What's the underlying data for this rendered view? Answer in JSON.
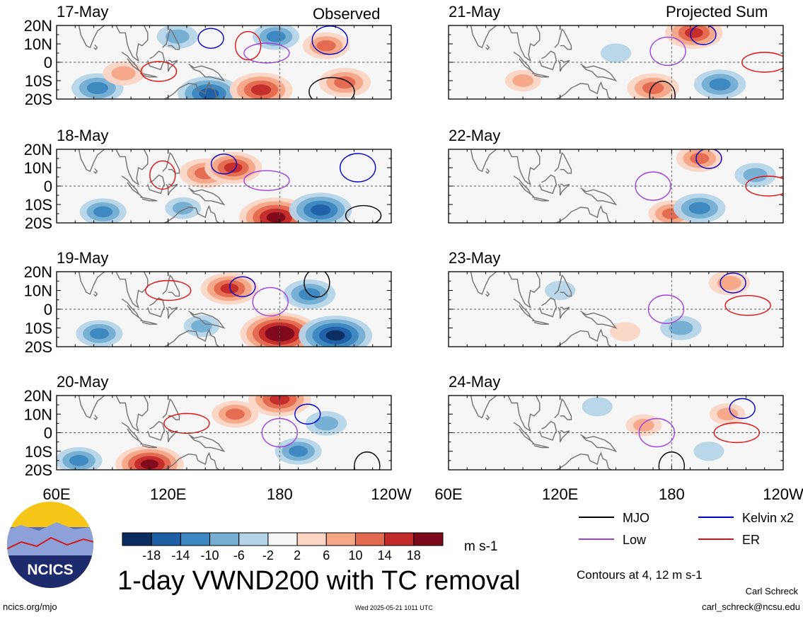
{
  "panel_labels": {
    "observed": "Observed",
    "projected": "Projected Sum"
  },
  "colorbar": {
    "ticks": [
      "-18",
      "-14",
      "-10",
      "-6",
      "-2",
      "2",
      "6",
      "10",
      "14",
      "18"
    ],
    "colors": [
      "#0b2c5e",
      "#1f5fa6",
      "#3d86bf",
      "#74aed3",
      "#b6d4e8",
      "#f6f6f6",
      "#fbd5c4",
      "#f4a687",
      "#e2684f",
      "#c22b2b",
      "#7d0a1c"
    ],
    "units": "m s-1"
  },
  "legend": {
    "items": [
      {
        "label": "MJO",
        "color": "#000000"
      },
      {
        "label": "Kelvin x2",
        "color": "#0000cc"
      },
      {
        "label": "Low",
        "color": "#a040e0"
      },
      {
        "label": "ER",
        "color": "#e01010"
      }
    ]
  },
  "title": "1-day VWND200 with TC removal",
  "contour_note": "Contours at 4, 12 m s-1",
  "author": "Carl Schreck",
  "email": "carl_schreck@ncsu.edu",
  "url": "ncics.org/mjo",
  "timestamp": "Wed 2025-05-21 1011 UTC",
  "logo_text": "NCICS",
  "chart_data": {
    "type": "heatmap",
    "variable": "VWND200",
    "units": "m s-1",
    "x_ticks": [
      "60E",
      "120E",
      "180",
      "120W"
    ],
    "y_ticks": [
      "20N",
      "10N",
      "0",
      "10S",
      "20S"
    ],
    "xlim": [
      60,
      240
    ],
    "ylim": [
      -20,
      20
    ],
    "grid": true,
    "panels": [
      {
        "date": "17-May",
        "column": "Observed",
        "anomalies": [
          {
            "lon": 82,
            "lat": -14,
            "value": -12
          },
          {
            "lon": 96,
            "lat": -6,
            "value": 8
          },
          {
            "lon": 142,
            "lat": -17,
            "value": -16
          },
          {
            "lon": 170,
            "lat": -15,
            "value": 16
          },
          {
            "lon": 125,
            "lat": 14,
            "value": -8
          },
          {
            "lon": 215,
            "lat": -11,
            "value": 12
          },
          {
            "lon": 178,
            "lat": 14,
            "value": -10
          },
          {
            "lon": 205,
            "lat": 9,
            "value": 10
          }
        ]
      },
      {
        "date": "18-May",
        "column": "Observed",
        "anomalies": [
          {
            "lon": 85,
            "lat": -14,
            "value": -10
          },
          {
            "lon": 140,
            "lat": 7,
            "value": 12
          },
          {
            "lon": 178,
            "lat": -17,
            "value": 20
          },
          {
            "lon": 202,
            "lat": -13,
            "value": -16
          },
          {
            "lon": 155,
            "lat": 10,
            "value": 14
          },
          {
            "lon": 128,
            "lat": -12,
            "value": -6
          }
        ]
      },
      {
        "date": "19-May",
        "column": "Observed",
        "anomalies": [
          {
            "lon": 83,
            "lat": -13,
            "value": -10
          },
          {
            "lon": 153,
            "lat": 11,
            "value": 14
          },
          {
            "lon": 180,
            "lat": -13,
            "value": 22
          },
          {
            "lon": 210,
            "lat": -14,
            "value": -20
          },
          {
            "lon": 196,
            "lat": 8,
            "value": -12
          },
          {
            "lon": 138,
            "lat": -9,
            "value": -6
          }
        ]
      },
      {
        "date": "20-May",
        "column": "Observed",
        "anomalies": [
          {
            "lon": 110,
            "lat": -17,
            "value": 18
          },
          {
            "lon": 180,
            "lat": 18,
            "value": 16
          },
          {
            "lon": 156,
            "lat": 10,
            "value": 10
          },
          {
            "lon": 190,
            "lat": -10,
            "value": -10
          },
          {
            "lon": 72,
            "lat": -15,
            "value": -10
          },
          {
            "lon": 205,
            "lat": 5,
            "value": -8
          }
        ]
      },
      {
        "date": "21-May",
        "column": "Projected Sum",
        "anomalies": [
          {
            "lon": 192,
            "lat": 16,
            "value": 14
          },
          {
            "lon": 170,
            "lat": -14,
            "value": 12
          },
          {
            "lon": 206,
            "lat": -12,
            "value": -12
          },
          {
            "lon": 100,
            "lat": -10,
            "value": 6
          },
          {
            "lon": 150,
            "lat": 5,
            "value": -4
          }
        ]
      },
      {
        "date": "22-May",
        "column": "Projected Sum",
        "anomalies": [
          {
            "lon": 195,
            "lat": 15,
            "value": 10
          },
          {
            "lon": 180,
            "lat": -15,
            "value": 10
          },
          {
            "lon": 195,
            "lat": -12,
            "value": -12
          },
          {
            "lon": 225,
            "lat": 6,
            "value": -8
          }
        ]
      },
      {
        "date": "23-May",
        "column": "Projected Sum",
        "anomalies": [
          {
            "lon": 211,
            "lat": 14,
            "value": 8
          },
          {
            "lon": 185,
            "lat": -10,
            "value": -8
          },
          {
            "lon": 155,
            "lat": -12,
            "value": 4
          },
          {
            "lon": 120,
            "lat": 10,
            "value": -4
          }
        ]
      },
      {
        "date": "24-May",
        "column": "Projected Sum",
        "anomalies": [
          {
            "lon": 210,
            "lat": 10,
            "value": 6
          },
          {
            "lon": 165,
            "lat": 4,
            "value": 6
          },
          {
            "lon": 140,
            "lat": 14,
            "value": -4
          },
          {
            "lon": 200,
            "lat": -10,
            "value": -4
          }
        ]
      }
    ],
    "contours": [
      {
        "panel": "17-May",
        "type": "Kelvin x2",
        "lon": 143,
        "lat": 13
      },
      {
        "panel": "17-May",
        "type": "Kelvin x2",
        "lon": 207,
        "lat": 12
      },
      {
        "panel": "17-May",
        "type": "Low",
        "lon": 173,
        "lat": 5
      },
      {
        "panel": "17-May",
        "type": "ER",
        "lon": 163,
        "lat": 9
      },
      {
        "panel": "17-May",
        "type": "ER",
        "lon": 115,
        "lat": -5
      },
      {
        "panel": "17-May",
        "type": "MJO",
        "lon": 208,
        "lat": -16
      },
      {
        "panel": "18-May",
        "type": "Kelvin x2",
        "lon": 150,
        "lat": 12
      },
      {
        "panel": "18-May",
        "type": "Kelvin x2",
        "lon": 222,
        "lat": 10
      },
      {
        "panel": "18-May",
        "type": "Low",
        "lon": 173,
        "lat": 3
      },
      {
        "panel": "18-May",
        "type": "ER",
        "lon": 117,
        "lat": 6
      },
      {
        "panel": "18-May",
        "type": "MJO",
        "lon": 225,
        "lat": -16
      },
      {
        "panel": "19-May",
        "type": "Kelvin x2",
        "lon": 160,
        "lat": 12
      },
      {
        "panel": "19-May",
        "type": "Low",
        "lon": 175,
        "lat": 4
      },
      {
        "panel": "19-May",
        "type": "ER",
        "lon": 120,
        "lat": 10
      },
      {
        "panel": "19-May",
        "type": "MJO",
        "lon": 200,
        "lat": 14
      },
      {
        "panel": "20-May",
        "type": "Kelvin x2",
        "lon": 195,
        "lat": 10
      },
      {
        "panel": "20-May",
        "type": "Low",
        "lon": 180,
        "lat": 0
      },
      {
        "panel": "20-May",
        "type": "ER",
        "lon": 130,
        "lat": 5
      },
      {
        "panel": "20-May",
        "type": "MJO",
        "lon": 227,
        "lat": -18
      },
      {
        "panel": "21-May",
        "type": "Kelvin x2",
        "lon": 197,
        "lat": 15
      },
      {
        "panel": "21-May",
        "type": "Low",
        "lon": 178,
        "lat": 6
      },
      {
        "panel": "21-May",
        "type": "ER",
        "lon": 230,
        "lat": 0
      },
      {
        "panel": "21-May",
        "type": "MJO",
        "lon": 175,
        "lat": -18
      },
      {
        "panel": "22-May",
        "type": "Kelvin x2",
        "lon": 200,
        "lat": 15
      },
      {
        "panel": "22-May",
        "type": "Low",
        "lon": 170,
        "lat": 0
      },
      {
        "panel": "22-May",
        "type": "ER",
        "lon": 232,
        "lat": 0
      },
      {
        "panel": "23-May",
        "type": "Kelvin x2",
        "lon": 213,
        "lat": 14
      },
      {
        "panel": "23-May",
        "type": "Low",
        "lon": 177,
        "lat": 0
      },
      {
        "panel": "23-May",
        "type": "ER",
        "lon": 221,
        "lat": 2
      },
      {
        "panel": "24-May",
        "type": "Kelvin x2",
        "lon": 218,
        "lat": 13
      },
      {
        "panel": "24-May",
        "type": "Low",
        "lon": 172,
        "lat": 0
      },
      {
        "panel": "24-May",
        "type": "ER",
        "lon": 215,
        "lat": 0
      },
      {
        "panel": "24-May",
        "type": "MJO",
        "lon": 180,
        "lat": -18
      }
    ]
  }
}
